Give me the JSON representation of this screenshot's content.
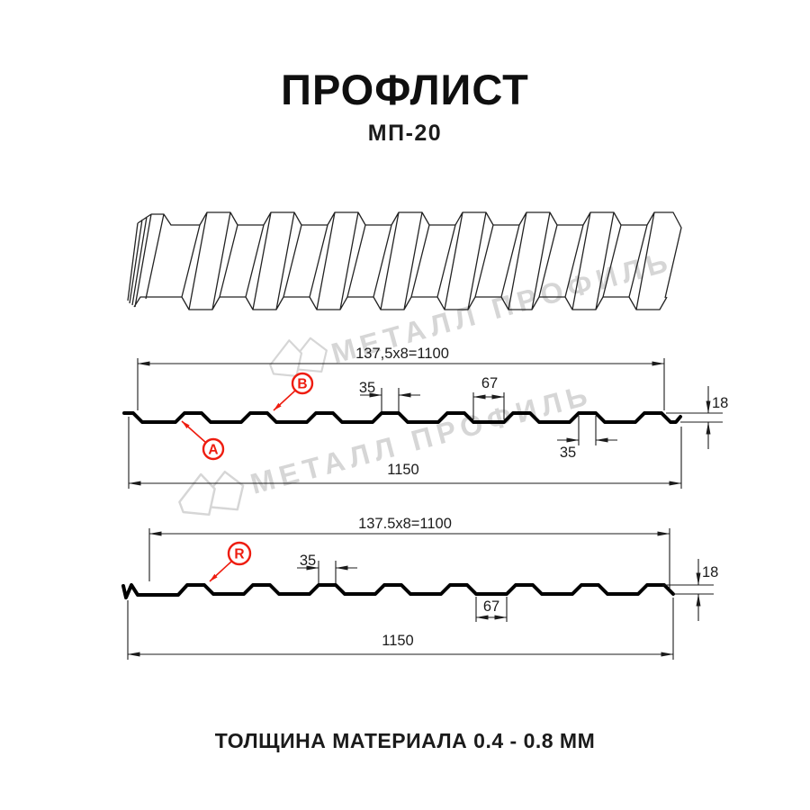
{
  "header": {
    "title": "ПРОФЛИСТ",
    "subtitle": "МП-20"
  },
  "watermark": {
    "brand_text": "МЕТАЛЛ ПРОФИЛЬ"
  },
  "diagram1": {
    "top_width_label": "137,5x8=1100",
    "rib_top_width_label": "35",
    "valley_width_label": "67",
    "height_label": "18",
    "rib_bottom_width_label": "35",
    "total_width_label": "1150",
    "callout_a": "A",
    "callout_b": "B"
  },
  "diagram2": {
    "top_width_label": "137.5x8=1100",
    "rib_top_width_label": "35",
    "valley_width_label": "67",
    "height_label": "18",
    "total_width_label": "1150",
    "callout_r": "R"
  },
  "footer": {
    "thickness_note": "ТОЛЩИНА МАТЕРИАЛА 0.4 - 0.8 ММ"
  },
  "colors": {
    "accent_red": "#ee1c0f",
    "watermark_gray": "#d6d6d6",
    "line_black": "#1b1b1b"
  }
}
